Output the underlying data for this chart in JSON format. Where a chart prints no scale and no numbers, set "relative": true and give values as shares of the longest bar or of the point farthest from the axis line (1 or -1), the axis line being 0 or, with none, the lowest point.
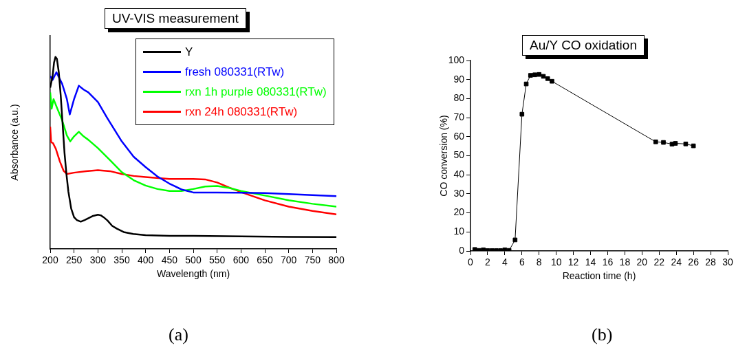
{
  "chart_data": [
    {
      "type": "line",
      "title": "UV-VIS measurement",
      "xlabel": "Wavelength (nm)",
      "ylabel": "Absorbance (a.u.)",
      "relative": true,
      "xlim": [
        200,
        800
      ],
      "xticks": [
        200,
        250,
        300,
        350,
        400,
        450,
        500,
        550,
        600,
        650,
        700,
        750,
        800
      ],
      "tick_labels": "x",
      "legend": "top right",
      "annotations": [
        "(a)"
      ],
      "series": [
        {
          "name": "Y",
          "color": "#000000",
          "x": [
            200,
            205,
            208,
            211,
            214,
            218,
            222,
            226,
            230,
            234,
            238,
            244,
            250,
            256,
            264,
            272,
            280,
            290,
            300,
            306,
            312,
            320,
            330,
            340,
            354,
            374,
            400,
            450,
            500,
            600,
            700,
            800
          ],
          "values": [
            0.84,
            0.9,
            0.97,
            1.0,
            0.99,
            0.92,
            0.8,
            0.65,
            0.5,
            0.39,
            0.3,
            0.21,
            0.165,
            0.15,
            0.142,
            0.15,
            0.16,
            0.172,
            0.178,
            0.175,
            0.165,
            0.148,
            0.12,
            0.105,
            0.088,
            0.078,
            0.072,
            0.068,
            0.068,
            0.065,
            0.063,
            0.062
          ]
        },
        {
          "name": "fresh 080331(RTw)",
          "color": "#0000ff",
          "x": [
            200,
            205,
            213,
            225,
            235,
            241,
            250,
            260,
            270,
            280,
            300,
            320,
            350,
            375,
            400,
            425,
            450,
            475,
            500,
            550,
            600,
            650,
            700,
            750,
            800
          ],
          "values": [
            0.9,
            0.88,
            0.92,
            0.86,
            0.78,
            0.7,
            0.78,
            0.85,
            0.83,
            0.815,
            0.765,
            0.68,
            0.56,
            0.48,
            0.426,
            0.377,
            0.34,
            0.31,
            0.294,
            0.294,
            0.293,
            0.291,
            0.286,
            0.28,
            0.275
          ]
        },
        {
          "name": "rxn 1h purple 080331(RTw)",
          "color": "#00ff00",
          "x": [
            200,
            203,
            207,
            215,
            225,
            235,
            242,
            250,
            260,
            270,
            280,
            300,
            325,
            350,
            375,
            400,
            425,
            450,
            475,
            500,
            525,
            550,
            575,
            600,
            650,
            700,
            750,
            800
          ],
          "values": [
            0.815,
            0.73,
            0.78,
            0.73,
            0.67,
            0.59,
            0.56,
            0.586,
            0.61,
            0.586,
            0.568,
            0.525,
            0.463,
            0.4,
            0.358,
            0.33,
            0.312,
            0.302,
            0.302,
            0.312,
            0.325,
            0.328,
            0.318,
            0.302,
            0.278,
            0.253,
            0.235,
            0.22
          ]
        },
        {
          "name": "rxn 24h 080331(RTw)",
          "color": "#ff0000",
          "x": [
            200,
            202,
            206,
            212,
            220,
            228,
            235,
            250,
            275,
            300,
            325,
            350,
            375,
            400,
            450,
            500,
            525,
            550,
            575,
            600,
            650,
            700,
            750,
            800
          ],
          "values": [
            0.636,
            0.556,
            0.55,
            0.52,
            0.457,
            0.407,
            0.39,
            0.397,
            0.405,
            0.41,
            0.405,
            0.39,
            0.38,
            0.374,
            0.364,
            0.364,
            0.362,
            0.346,
            0.32,
            0.296,
            0.253,
            0.22,
            0.198,
            0.18
          ]
        }
      ]
    },
    {
      "type": "line",
      "title": "Au/Y CO oxidation",
      "xlabel": "Reaction time (h)",
      "ylabel": "CO conversion (%)",
      "xlim": [
        0,
        30
      ],
      "xticks": [
        0,
        2,
        4,
        6,
        8,
        10,
        12,
        14,
        16,
        18,
        20,
        22,
        24,
        26,
        28,
        30
      ],
      "ylim": [
        0,
        100
      ],
      "yticks": [
        0,
        10,
        20,
        30,
        40,
        50,
        60,
        70,
        80,
        90,
        100
      ],
      "marker": "square",
      "color": "#000000",
      "annotations": [
        "(b)"
      ],
      "x": [
        0.5,
        1,
        1.5,
        2,
        2.5,
        3,
        3.5,
        4,
        4.5,
        5.2,
        6,
        6.5,
        7,
        7.5,
        8,
        8.5,
        9,
        9.5,
        21.6,
        22.5,
        23.5,
        23.9,
        25.1,
        26
      ],
      "values": [
        0.8,
        0.3,
        0.6,
        0.2,
        0.2,
        0.2,
        0.2,
        0.6,
        0.3,
        5.8,
        71.8,
        87.7,
        92.2,
        92.5,
        92.7,
        91.7,
        90.5,
        89.1,
        57.3,
        57,
        56.1,
        56.5,
        56.2,
        55.2
      ]
    }
  ]
}
